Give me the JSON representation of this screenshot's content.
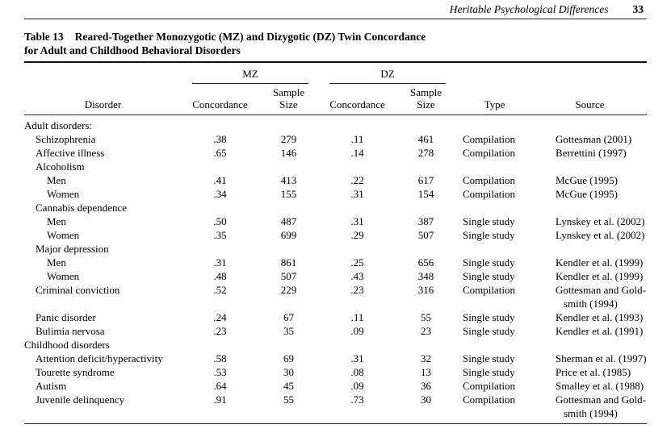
{
  "page": {
    "running_head": "Heritable Psychological Differences",
    "page_number": "33"
  },
  "table": {
    "caption_label": "Table 13",
    "caption_line1": "Reared-Together Monozygotic (MZ) and Dizygotic (DZ) Twin Concordance",
    "caption_line2": "for Adult and Childhood Behavioral Disorders",
    "spanners": {
      "mz": "MZ",
      "dz": "DZ"
    },
    "headers": {
      "disorder": "Disorder",
      "concordance": "Concordance",
      "sample_size_line1": "Sample",
      "sample_size_line2": "Size",
      "type": "Type",
      "source": "Source"
    },
    "rows": [
      {
        "label": "Adult disorders:",
        "level": 0
      },
      {
        "label": "Schizophrenia",
        "level": 1,
        "mz_c": ".38",
        "mz_n": "279",
        "dz_c": ".11",
        "dz_n": "461",
        "type": "Compilation",
        "source": "Gottesman (2001)"
      },
      {
        "label": "Affective illness",
        "level": 1,
        "mz_c": ".65",
        "mz_n": "146",
        "dz_c": ".14",
        "dz_n": "278",
        "type": "Compilation",
        "source": "Berrettini (1997)"
      },
      {
        "label": "Alcoholism",
        "level": 1
      },
      {
        "label": "Men",
        "level": 2,
        "mz_c": ".41",
        "mz_n": "413",
        "dz_c": ".22",
        "dz_n": "617",
        "type": "Compilation",
        "source": "McGue (1995)"
      },
      {
        "label": "Women",
        "level": 2,
        "mz_c": ".34",
        "mz_n": "155",
        "dz_c": ".31",
        "dz_n": "154",
        "type": "Compilation",
        "source": "McGue (1995)"
      },
      {
        "label": "Cannabis dependence",
        "level": 1
      },
      {
        "label": "Men",
        "level": 2,
        "mz_c": ".50",
        "mz_n": "487",
        "dz_c": ".31",
        "dz_n": "387",
        "type": "Single study",
        "source": "Lynskey et al. (2002)"
      },
      {
        "label": "Women",
        "level": 2,
        "mz_c": ".35",
        "mz_n": "699",
        "dz_c": ".29",
        "dz_n": "507",
        "type": "Single study",
        "source": "Lynskey et al. (2002)"
      },
      {
        "label": "Major depression",
        "level": 1
      },
      {
        "label": "Men",
        "level": 2,
        "mz_c": ".31",
        "mz_n": "861",
        "dz_c": ".25",
        "dz_n": "656",
        "type": "Single study",
        "source": "Kendler et al. (1999)"
      },
      {
        "label": "Women",
        "level": 2,
        "mz_c": ".48",
        "mz_n": "507",
        "dz_c": ".43",
        "dz_n": "348",
        "type": "Single study",
        "source": "Kendler et al. (1999)"
      },
      {
        "label": "Criminal conviction",
        "level": 1,
        "mz_c": ".52",
        "mz_n": "229",
        "dz_c": ".23",
        "dz_n": "316",
        "type": "Compilation",
        "source": "Gottesman and Gold-\nsmith (1994)"
      },
      {
        "label": "Panic disorder",
        "level": 1,
        "mz_c": ".24",
        "mz_n": "67",
        "dz_c": ".11",
        "dz_n": "55",
        "type": "Single study",
        "source": "Kendler et al. (1993)"
      },
      {
        "label": "Bulimia nervosa",
        "level": 1,
        "mz_c": ".23",
        "mz_n": "35",
        "dz_c": ".09",
        "dz_n": "23",
        "type": "Single study",
        "source": "Kendler et al. (1991)"
      },
      {
        "label": "Childhood disorders",
        "level": 0
      },
      {
        "label": "Attention deficit/hyperactivity",
        "level": 1,
        "mz_c": ".58",
        "mz_n": "69",
        "dz_c": ".31",
        "dz_n": "32",
        "type": "Single study",
        "source": "Sherman et al. (1997)"
      },
      {
        "label": "Tourette syndrome",
        "level": 1,
        "mz_c": ".53",
        "mz_n": "30",
        "dz_c": ".08",
        "dz_n": "13",
        "type": "Single study",
        "source": "Price et al. (1985)"
      },
      {
        "label": "Autism",
        "level": 1,
        "mz_c": ".64",
        "mz_n": "45",
        "dz_c": ".09",
        "dz_n": "36",
        "type": "Compilation",
        "source": "Smalley et al. (1988)"
      },
      {
        "label": "Juvenile delinquency",
        "level": 1,
        "mz_c": ".91",
        "mz_n": "55",
        "dz_c": ".73",
        "dz_n": "30",
        "type": "Compilation",
        "source": "Gottesman and Gold-\nsmith (1994)"
      }
    ]
  }
}
